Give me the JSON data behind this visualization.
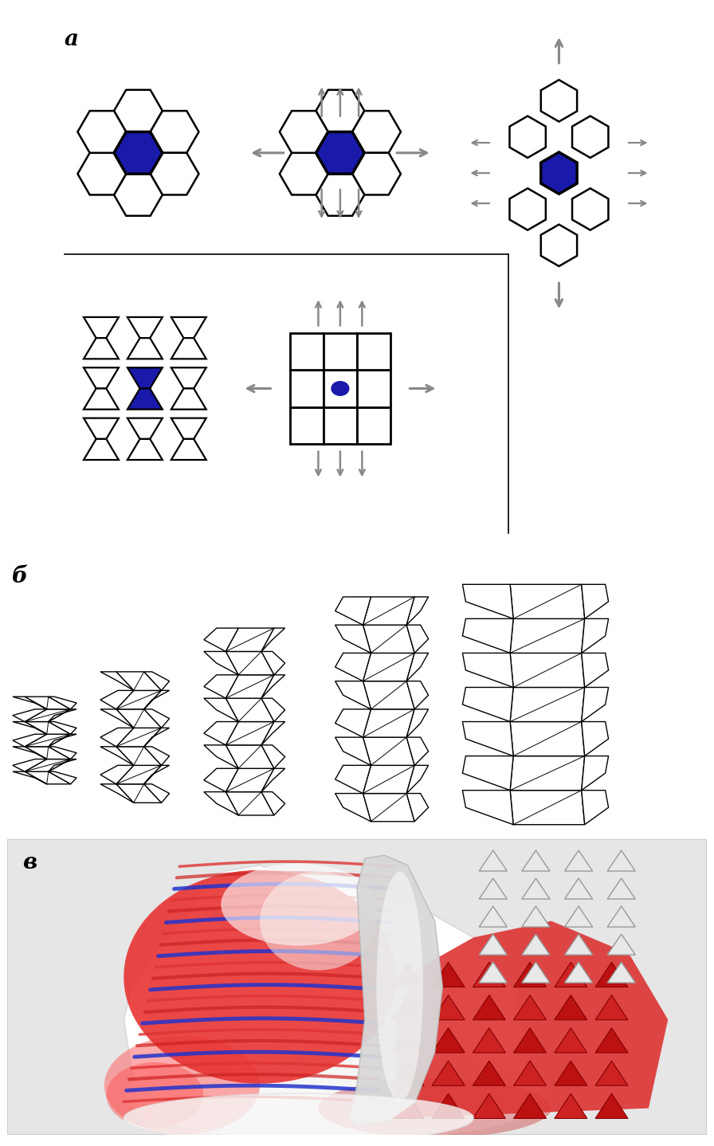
{
  "bg_color": "#ffffff",
  "panel_a_label": "а",
  "panel_b_label": "б",
  "panel_c_label": "в",
  "blue_fill": "#1a1aaa",
  "blue_fill_dark": "#0000cc",
  "arrow_color": "#888888",
  "label_fontsize": 20,
  "hex_lw": 1.8,
  "hex_lw_blue": 2.5
}
